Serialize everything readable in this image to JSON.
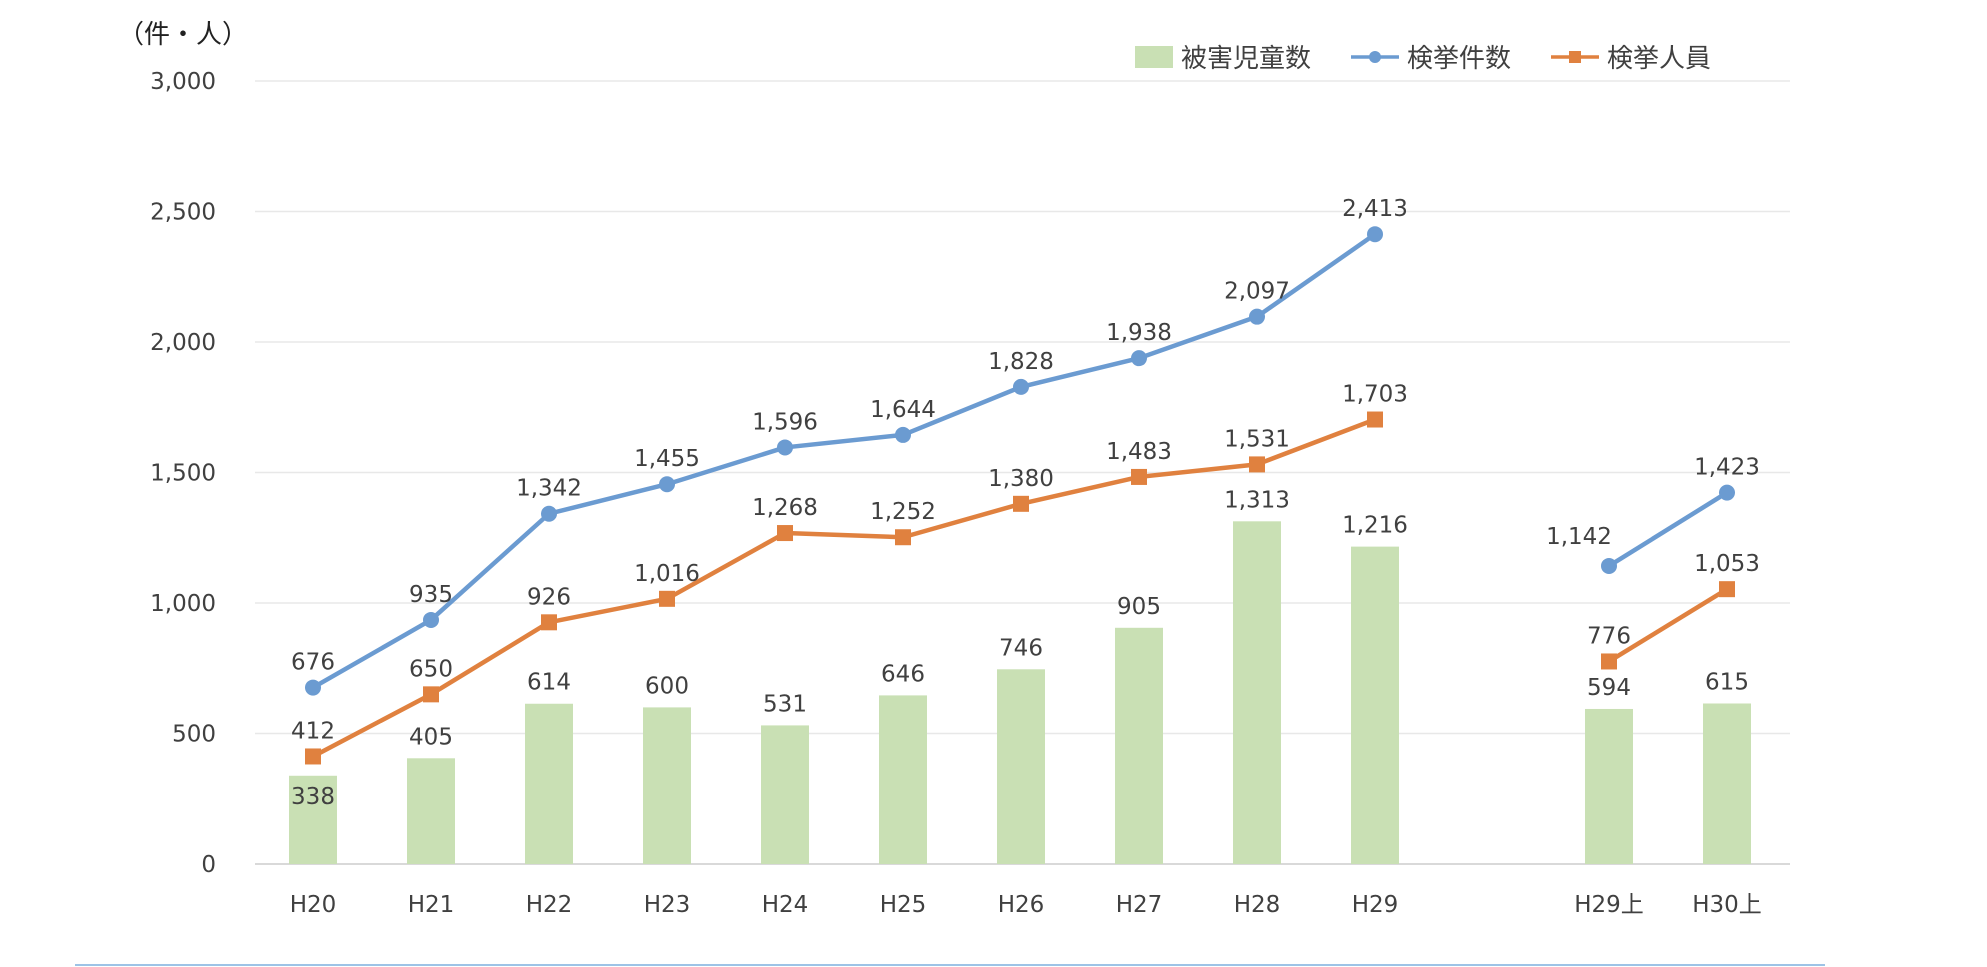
{
  "chart_data": {
    "type": "bar",
    "unit_label": "（件・人）",
    "categories": [
      "H20",
      "H21",
      "H22",
      "H23",
      "H24",
      "H25",
      "H26",
      "H27",
      "H28",
      "H29",
      "H29上",
      "H30上"
    ],
    "ylim": [
      0,
      3000
    ],
    "yticks": [
      0,
      500,
      1000,
      1500,
      2000,
      2500,
      3000
    ],
    "ytick_labels": [
      "0",
      "500",
      "1,000",
      "1,500",
      "2,000",
      "2,500",
      "3,000"
    ],
    "grid": true,
    "legend_position": "top-right",
    "series": [
      {
        "name": "被害児童数",
        "type": "bar",
        "color": "#c9e0b4",
        "values": [
          338,
          405,
          614,
          600,
          531,
          646,
          746,
          905,
          1313,
          1216,
          594,
          615
        ],
        "labels": [
          "338",
          "405",
          "614",
          "600",
          "531",
          "646",
          "746",
          "905",
          "1,313",
          "1,216",
          "594",
          "615"
        ]
      },
      {
        "name": "検挙件数",
        "type": "line",
        "marker": "circle",
        "color": "#6b9bd1",
        "values": [
          676,
          935,
          1342,
          1455,
          1596,
          1644,
          1828,
          1938,
          2097,
          2413,
          1142,
          1423
        ],
        "labels": [
          "676",
          "935",
          "1,342",
          "1,455",
          "1,596",
          "1,644",
          "1,828",
          "1,938",
          "2,097",
          "2,413",
          "1,142",
          "1,423"
        ]
      },
      {
        "name": "検挙人員",
        "type": "line",
        "marker": "square",
        "color": "#e0813f",
        "values": [
          412,
          650,
          926,
          1016,
          1268,
          1252,
          1380,
          1483,
          1531,
          1703,
          776,
          1053
        ],
        "labels": [
          "412",
          "650",
          "926",
          "1,016",
          "1,268",
          "1,252",
          "1,380",
          "1,483",
          "1,531",
          "1,703",
          "776",
          "1,053"
        ]
      }
    ],
    "line_segments": [
      [
        0,
        9
      ],
      [
        10,
        11
      ]
    ],
    "colors": {
      "axis_text": "#404040",
      "label_text": "#404040",
      "gridline": "#e8e8e8",
      "baseline": "#d9d9d9",
      "bottom_rule": "#9dc3e6"
    }
  }
}
